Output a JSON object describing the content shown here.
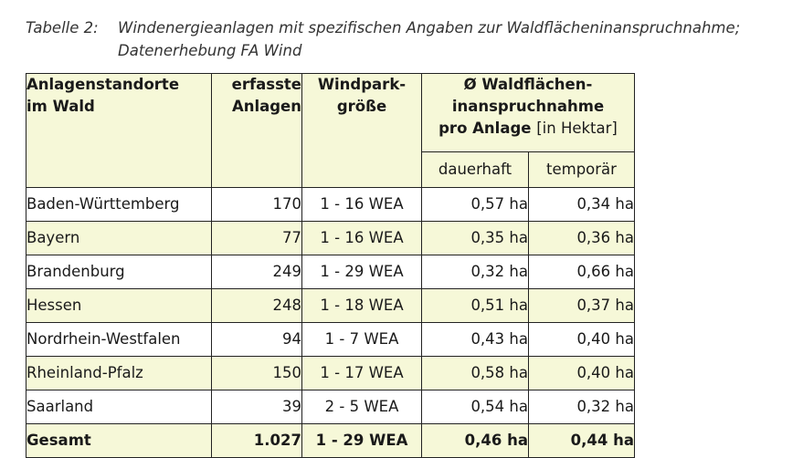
{
  "caption": {
    "label": "Tabelle 2:",
    "line1": "Windenergieanlagen mit spezifischen Angaben zur Waldflächeninanspruchnahme;",
    "line2": "Datenerhebung FA Wind"
  },
  "table": {
    "headers": {
      "standorte_line1": "Anlagenstandorte",
      "standorte_line2": "im Wald",
      "anlagen_line1": "erfasste",
      "anlagen_line2": "Anlagen",
      "windpark_line1": "Windpark-",
      "windpark_line2": "größe",
      "group_line1": "Ø Waldflächen-",
      "group_line2": "inanspruchnahme",
      "group_line3_bold": "pro Anlage",
      "group_line3_unit": "[in Hektar]",
      "sub_dauerhaft": "dauerhaft",
      "sub_temporaer": "temporär"
    },
    "rows": [
      {
        "standort": "Baden-Württemberg",
        "anlagen": "170",
        "windpark": "1 - 16 WEA",
        "dauerhaft": "0,57 ha",
        "temporaer": "0,34 ha"
      },
      {
        "standort": "Bayern",
        "anlagen": "77",
        "windpark": "1 - 16 WEA",
        "dauerhaft": "0,35 ha",
        "temporaer": "0,36 ha"
      },
      {
        "standort": "Brandenburg",
        "anlagen": "249",
        "windpark": "1 - 29 WEA",
        "dauerhaft": "0,32 ha",
        "temporaer": "0,66 ha"
      },
      {
        "standort": "Hessen",
        "anlagen": "248",
        "windpark": "1 - 18 WEA",
        "dauerhaft": "0,51 ha",
        "temporaer": "0,37 ha"
      },
      {
        "standort": "Nordrhein-Westfalen",
        "anlagen": "94",
        "windpark": "1 - 7 WEA",
        "dauerhaft": "0,43 ha",
        "temporaer": "0,40 ha"
      },
      {
        "standort": "Rheinland-Pfalz",
        "anlagen": "150",
        "windpark": "1 - 17 WEA",
        "dauerhaft": "0,58 ha",
        "temporaer": "0,40 ha"
      },
      {
        "standort": "Saarland",
        "anlagen": "39",
        "windpark": "2 - 5 WEA",
        "dauerhaft": "0,54 ha",
        "temporaer": "0,32 ha"
      }
    ],
    "total": {
      "standort": "Gesamt",
      "anlagen": "1.027",
      "windpark": "1 - 29 WEA",
      "dauerhaft": "0,46 ha",
      "temporaer": "0,44 ha"
    }
  }
}
